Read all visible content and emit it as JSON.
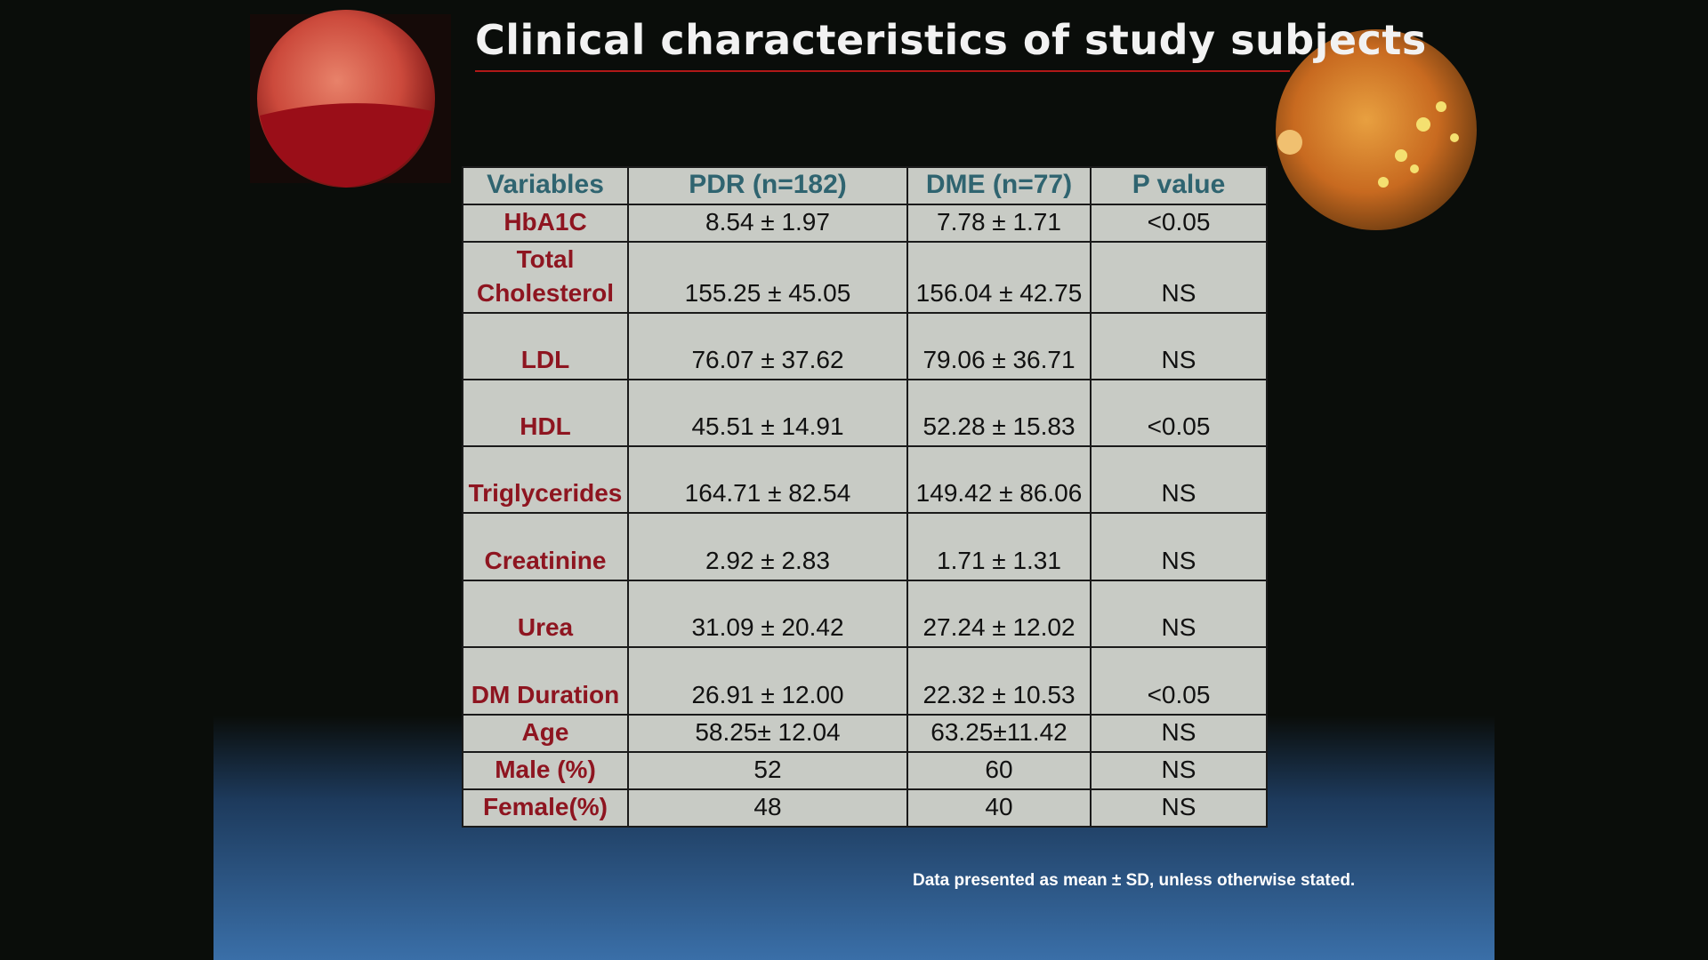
{
  "header": {
    "title": "Clinical characteristics of study subjects"
  },
  "table": {
    "columns": [
      "Variables",
      "PDR (n=182)",
      "DME (n=77)",
      "P value"
    ],
    "rows": [
      [
        "HbA1C",
        "8.54 ± 1.97",
        "7.78 ± 1.71",
        "<0.05"
      ],
      [
        "Total Cholesterol",
        "155.25 ± 45.05",
        "156.04 ± 42.75",
        "NS"
      ],
      [
        "LDL",
        "76.07 ± 37.62",
        "79.06 ± 36.71",
        "NS"
      ],
      [
        "HDL",
        "45.51 ± 14.91",
        "52.28 ± 15.83",
        "<0.05"
      ],
      [
        "Triglycerides",
        "164.71 ± 82.54",
        "149.42 ± 86.06",
        "NS"
      ],
      [
        "Creatinine",
        "2.92 ± 2.83",
        "1.71 ± 1.31",
        "NS"
      ],
      [
        "Urea",
        "31.09 ± 20.42",
        "27.24 ± 12.02",
        "NS"
      ],
      [
        "DM Duration",
        "26.91 ± 12.00",
        "22.32 ± 10.53",
        "<0.05"
      ],
      [
        "Age",
        "58.25± 12.04",
        "63.25±11.42",
        "NS"
      ],
      [
        "Male (%)",
        "52",
        "60",
        "NS"
      ],
      [
        "Female(%)",
        "48",
        "40",
        "NS"
      ]
    ]
  },
  "footnote": "Data presented as mean ± SD, unless otherwise stated."
}
